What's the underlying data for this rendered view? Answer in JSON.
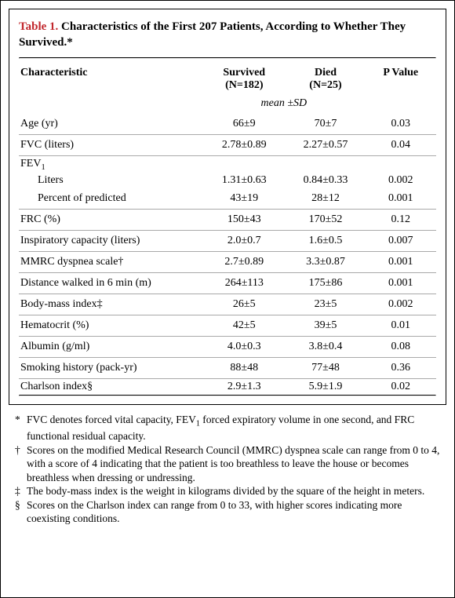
{
  "title_label": "Table 1.",
  "title_text": " Characteristics of the First 207 Patients, According to Whether They Survived.*",
  "columns": {
    "c0": "Characteristic",
    "c1_a": "Survived",
    "c1_b": "(N=182)",
    "c2_a": "Died",
    "c2_b": "(N=25)",
    "c3": "P Value"
  },
  "subheader": "mean ±SD",
  "rows": [
    {
      "label": "Age (yr)",
      "survived": "66±9",
      "died": "70±7",
      "p": "0.03",
      "rule": true
    },
    {
      "label": "FVC (liters)",
      "survived": "2.78±0.89",
      "died": "2.27±0.57",
      "p": "0.04",
      "rule": true
    },
    {
      "label_html": "FEV<span class=\"sub1\">1</span>",
      "survived": "",
      "died": "",
      "p": "",
      "rule": false
    },
    {
      "label_indent": "Liters",
      "survived": "1.31±0.63",
      "died": "0.84±0.33",
      "p": "0.002",
      "rule": false
    },
    {
      "label_indent": "Percent of predicted",
      "survived": "43±19",
      "died": "28±12",
      "p": "0.001",
      "rule": true
    },
    {
      "label": "FRC (%)",
      "survived": "150±43",
      "died": "170±52",
      "p": "0.12",
      "rule": true
    },
    {
      "label": "Inspiratory capacity (liters)",
      "survived": "2.0±0.7",
      "died": "1.6±0.5",
      "p": "0.007",
      "rule": true
    },
    {
      "label": "MMRC dyspnea scale†",
      "survived": "2.7±0.89",
      "died": "3.3±0.87",
      "p": "0.001",
      "rule": true
    },
    {
      "label": "Distance walked in 6 min (m)",
      "survived": "264±113",
      "died": "175±86",
      "p": "0.001",
      "rule": true
    },
    {
      "label": "Body-mass index‡",
      "survived": "26±5",
      "died": "23±5",
      "p": "0.002",
      "rule": true
    },
    {
      "label": "Hematocrit (%)",
      "survived": "42±5",
      "died": "39±5",
      "p": "0.01",
      "rule": true
    },
    {
      "label": "Albumin (g/ml)",
      "survived": "4.0±0.3",
      "died": "3.8±0.4",
      "p": "0.08",
      "rule": true
    },
    {
      "label": "Smoking history (pack-yr)",
      "survived": "88±48",
      "died": "77±48",
      "p": "0.36",
      "rule": true
    },
    {
      "label": "Charlson index§",
      "survived": "2.9±1.3",
      "died": "5.9±1.9",
      "p": "0.02",
      "rule": false
    }
  ],
  "footnotes": [
    {
      "mark": "*",
      "text_html": "FVC denotes forced vital capacity, FEV<span class=\"sub1\">1</span> forced expiratory volume in one second, and FRC functional residual capacity."
    },
    {
      "mark": "†",
      "text": "Scores on the modified Medical Research Council (MMRC) dyspnea scale can range from 0 to 4, with a score of 4 indicating that the patient is too breathless to leave the house or becomes breathless when dressing or undressing."
    },
    {
      "mark": "‡",
      "text": "The body-mass index is the weight in kilograms divided by the square of the height in meters."
    },
    {
      "mark": "§",
      "text": "Scores on the Charlson index can range from 0 to 33, with higher scores indicating more coexisting conditions."
    }
  ]
}
